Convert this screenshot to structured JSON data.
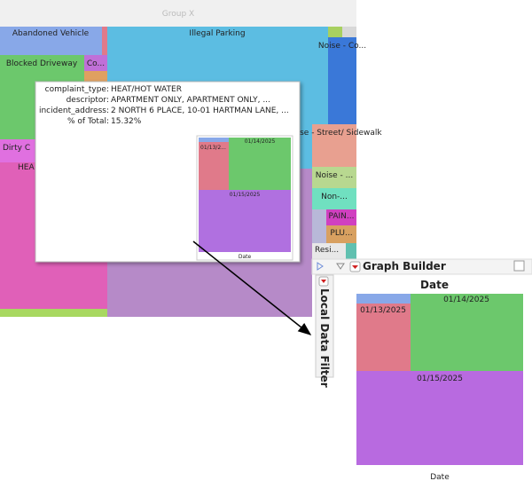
{
  "treemap": {
    "title": "Group X",
    "tiles": [
      "Abandoned Vehicle",
      "Illegal Parking",
      "Blocked Driveway",
      "Co...",
      "Noise - Co...",
      "Noise - Street/ Sidewalk",
      "Dirty C",
      "HEA",
      "Noise - ...",
      "Non-...",
      "PAIN...",
      "PLU...",
      "Resi..."
    ]
  },
  "tooltip": {
    "rows": [
      [
        "complaint_type:",
        "HEAT/HOT WATER"
      ],
      [
        "descriptor:",
        "APARTMENT ONLY, APARTMENT ONLY, ..."
      ],
      [
        "incident_address:",
        "2 NORTH    6 PLACE, 10-01 HARTMAN LANE, ..."
      ],
      [
        "% of Total:",
        "15.32%"
      ]
    ],
    "thumbnail": {
      "labels": [
        "01/13/2...",
        "01/14/2025",
        "01/15/2025"
      ],
      "axis": "Date"
    }
  },
  "graph_builder": {
    "title": "Graph Builder",
    "sidebar": "Local Data Filter",
    "chart_title": "Date",
    "labels": [
      "01/13/2025",
      "01/14/2025",
      "01/15/2025"
    ],
    "axis": "Date"
  }
}
